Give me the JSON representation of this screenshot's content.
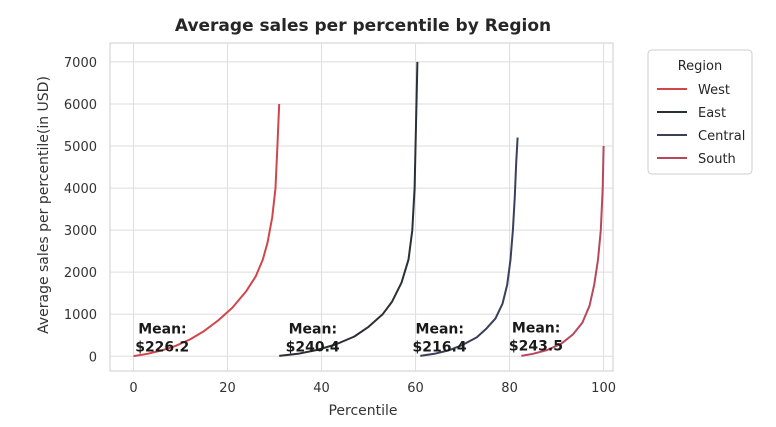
{
  "chart_data": {
    "type": "line",
    "title": "Average sales per percentile by Region",
    "xlabel": "Percentile",
    "ylabel": "Average sales per percentile(in USD)",
    "xlim": [
      -5,
      102
    ],
    "ylim": [
      -350,
      7450
    ],
    "xticks": [
      0,
      20,
      40,
      60,
      80,
      100
    ],
    "yticks": [
      0,
      1000,
      2000,
      3000,
      4000,
      5000,
      6000,
      7000
    ],
    "grid": true,
    "legend": {
      "title": "Region",
      "placement": "outside-top-right"
    },
    "series": [
      {
        "name": "West",
        "color": "#d1454b",
        "x": [
          0,
          3,
          6,
          9,
          12,
          15,
          18,
          21,
          24,
          26,
          27.5,
          28.5,
          29.5,
          30.2,
          30.6,
          31
        ],
        "y": [
          5,
          60,
          140,
          250,
          400,
          600,
          850,
          1150,
          1550,
          1900,
          2300,
          2700,
          3300,
          4000,
          5000,
          6000
        ]
      },
      {
        "name": "East",
        "color": "#2b2f36",
        "x": [
          31,
          35,
          39,
          43,
          47,
          50,
          53,
          55,
          57,
          58.5,
          59.3,
          59.8,
          60.1,
          60.4
        ],
        "y": [
          10,
          60,
          150,
          280,
          470,
          700,
          1000,
          1300,
          1750,
          2300,
          3000,
          4000,
          5500,
          7000
        ]
      },
      {
        "name": "Central",
        "color": "#3c3f5a",
        "x": [
          61,
          64,
          67,
          70,
          73,
          75,
          77,
          78.5,
          79.5,
          80.2,
          80.7,
          81.1,
          81.4,
          81.7
        ],
        "y": [
          10,
          60,
          140,
          270,
          450,
          650,
          900,
          1250,
          1700,
          2300,
          3000,
          3800,
          4600,
          5200
        ]
      },
      {
        "name": "South",
        "color": "#b8475e",
        "x": [
          82.5,
          85,
          88,
          91,
          93.5,
          95.5,
          97,
          98,
          98.8,
          99.4,
          99.8,
          100
        ],
        "y": [
          10,
          60,
          150,
          300,
          520,
          800,
          1200,
          1700,
          2300,
          3000,
          4000,
          5000
        ]
      }
    ],
    "annotations": [
      {
        "line1": "Mean:",
        "line2": "$226.2",
        "x": 1,
        "y": 500
      },
      {
        "line1": "Mean:",
        "line2": "$240.4",
        "x": 33,
        "y": 500
      },
      {
        "line1": "Mean:",
        "line2": "$216.4",
        "x": 60,
        "y": 500
      },
      {
        "line1": "Mean:",
        "line2": "$243.5",
        "x": 80.5,
        "y": 520
      }
    ]
  }
}
